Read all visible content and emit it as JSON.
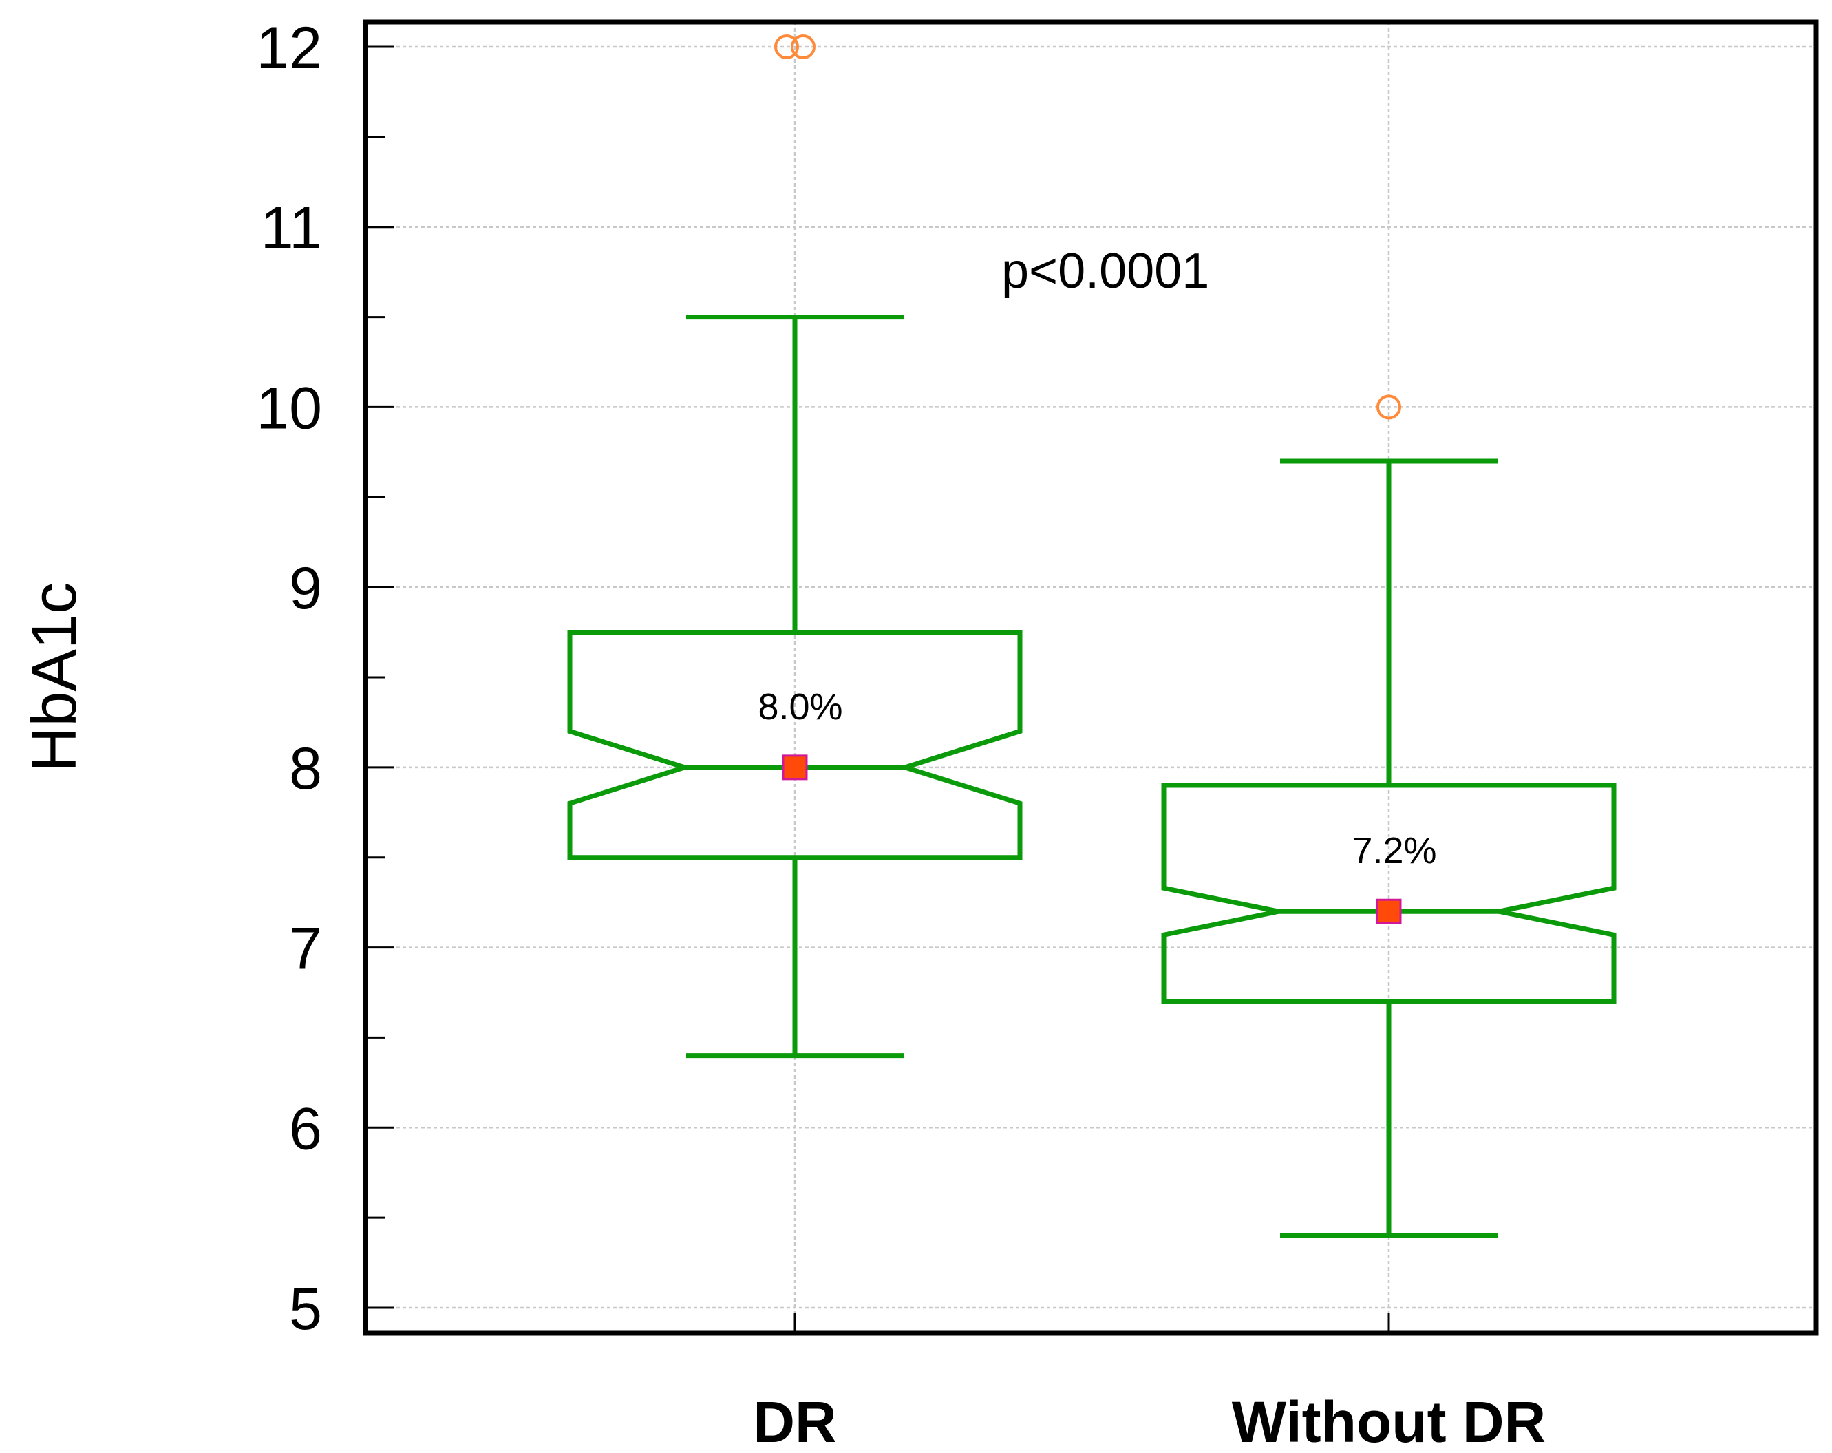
{
  "chart_data": {
    "type": "box",
    "ylabel": "HbA1c",
    "xlabel": "",
    "ylim": [
      5,
      12
    ],
    "yticks": [
      "5",
      "6",
      "7",
      "8",
      "9",
      "10",
      "11",
      "12"
    ],
    "grid": true,
    "notched": true,
    "annotation": "p<0.0001",
    "categories": [
      "DR",
      "Without DR"
    ],
    "boxes": [
      {
        "category": "DR",
        "whisker_low": 6.4,
        "q1": 7.5,
        "median": 8.0,
        "q3": 8.75,
        "whisker_high": 10.5,
        "notch_low": 7.8,
        "notch_high": 8.2,
        "mean": 8.0,
        "median_label": "8.0%",
        "outliers": [
          12,
          12
        ]
      },
      {
        "category": "Without DR",
        "whisker_low": 5.4,
        "q1": 6.7,
        "median": 7.2,
        "q3": 7.9,
        "whisker_high": 9.7,
        "notch_low": 7.07,
        "notch_high": 7.33,
        "mean": 7.2,
        "median_label": "7.2%",
        "outliers": [
          10
        ]
      }
    ],
    "colors": {
      "box": "#0a9a0a",
      "mean_marker_fill": "#ff4a0a",
      "mean_marker_stroke": "#d0189a",
      "outlier": "#ff8a3a",
      "grid": "#c8c8c8",
      "axis": "#000000"
    }
  }
}
